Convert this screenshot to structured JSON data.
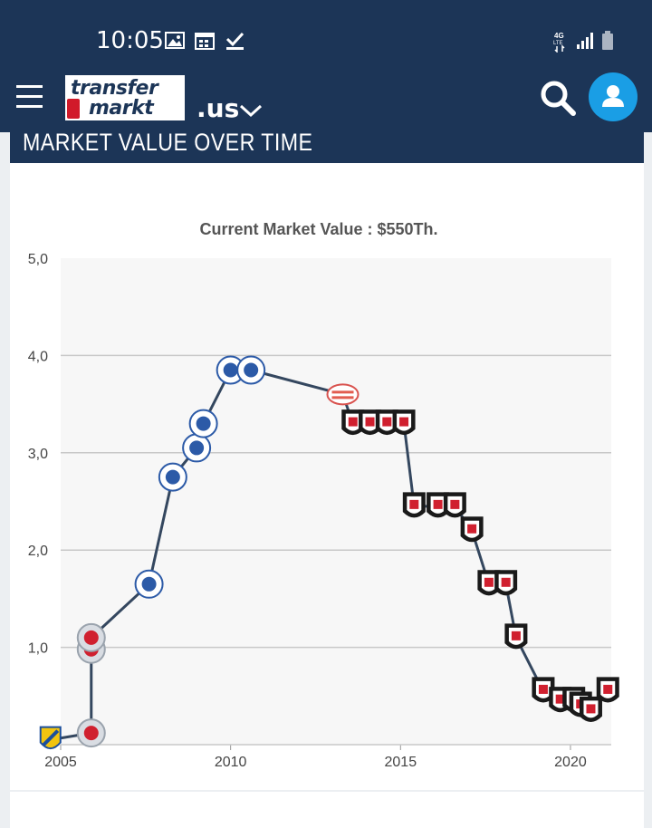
{
  "status_bar": {
    "time": "10:05",
    "icons": [
      "image-icon",
      "calendar-icon",
      "check-icon",
      "network-4g-lte-icon",
      "signal-icon",
      "battery-icon"
    ]
  },
  "nav": {
    "logo_line1": "transfer",
    "logo_line2": "markt",
    "domain": ".us",
    "icons": [
      "hamburger-menu-icon",
      "chevron-down-icon",
      "search-icon",
      "user-icon"
    ]
  },
  "section": {
    "title": "MARKET VALUE OVER TIME"
  },
  "colors": {
    "brand_navy": "#1c3557",
    "accent_blue": "#1a9ee5",
    "line": "#34475f"
  },
  "chart_data": {
    "type": "line",
    "title": "Current Market Value : $550Th.",
    "xlabel": "",
    "ylabel": "",
    "xlim": [
      2005,
      2021.2
    ],
    "ylim": [
      0,
      5
    ],
    "x_ticks": [
      "2005",
      "2010",
      "2015",
      "2020"
    ],
    "y_ticks": [
      "5,0",
      "4,0",
      "3,0",
      "2,0",
      "1,0"
    ],
    "grid": true,
    "series": [
      {
        "name": "",
        "points": [
          {
            "x": 2004.7,
            "y": 0.05,
            "club": "striped-club"
          },
          {
            "x": 2005.9,
            "y": 0.12,
            "club": "red-white-club"
          },
          {
            "x": 2005.9,
            "y": 0.98,
            "club": "red-white-club"
          },
          {
            "x": 2005.9,
            "y": 1.1,
            "club": "red-white-club"
          },
          {
            "x": 2007.6,
            "y": 1.65,
            "club": "blue-lion-club"
          },
          {
            "x": 2008.3,
            "y": 2.75,
            "club": "blue-lion-club"
          },
          {
            "x": 2009.0,
            "y": 3.05,
            "club": "blue-lion-club"
          },
          {
            "x": 2009.2,
            "y": 3.3,
            "club": "blue-lion-club"
          },
          {
            "x": 2010.0,
            "y": 3.85,
            "club": "blue-lion-club"
          },
          {
            "x": 2010.6,
            "y": 3.85,
            "club": "blue-lion-club"
          },
          {
            "x": 2013.3,
            "y": 3.6,
            "club": "red-white-stripe-club"
          },
          {
            "x": 2013.6,
            "y": 3.3,
            "club": "black-white-club"
          },
          {
            "x": 2014.1,
            "y": 3.3,
            "club": "black-white-club"
          },
          {
            "x": 2014.6,
            "y": 3.3,
            "club": "black-white-club"
          },
          {
            "x": 2015.1,
            "y": 3.3,
            "club": "black-white-club"
          },
          {
            "x": 2015.4,
            "y": 2.45,
            "club": "black-white-club"
          },
          {
            "x": 2016.1,
            "y": 2.45,
            "club": "black-white-club"
          },
          {
            "x": 2016.6,
            "y": 2.45,
            "club": "black-white-club"
          },
          {
            "x": 2017.1,
            "y": 2.2,
            "club": "black-white-club"
          },
          {
            "x": 2017.6,
            "y": 1.65,
            "club": "black-white-club"
          },
          {
            "x": 2018.1,
            "y": 1.65,
            "club": "black-white-club"
          },
          {
            "x": 2018.4,
            "y": 1.1,
            "club": "black-white-club"
          },
          {
            "x": 2019.2,
            "y": 0.55,
            "club": "black-white-club"
          },
          {
            "x": 2019.7,
            "y": 0.45,
            "club": "black-white-club"
          },
          {
            "x": 2020.1,
            "y": 0.45,
            "club": "black-white-club"
          },
          {
            "x": 2020.3,
            "y": 0.4,
            "club": "black-white-club"
          },
          {
            "x": 2020.6,
            "y": 0.35,
            "club": "black-white-club"
          },
          {
            "x": 2021.1,
            "y": 0.55,
            "club": "black-white-club"
          }
        ]
      }
    ]
  }
}
